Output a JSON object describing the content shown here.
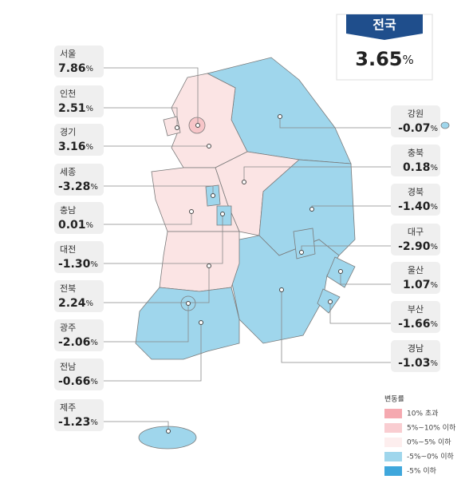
{
  "national": {
    "name": "전국",
    "value": "3.65"
  },
  "unit": "%",
  "regions": [
    {
      "name": "서울",
      "value": "7.86"
    },
    {
      "name": "인천",
      "value": "2.51"
    },
    {
      "name": "경기",
      "value": "3.16"
    },
    {
      "name": "세종",
      "value": "-3.28"
    },
    {
      "name": "충남",
      "value": "0.01"
    },
    {
      "name": "대전",
      "value": "-1.30"
    },
    {
      "name": "전북",
      "value": "2.24"
    },
    {
      "name": "광주",
      "value": "-2.06"
    },
    {
      "name": "전남",
      "value": "-0.66"
    },
    {
      "name": "제주",
      "value": "-1.23"
    },
    {
      "name": "강원",
      "value": "-0.07"
    },
    {
      "name": "충북",
      "value": "0.18"
    },
    {
      "name": "경북",
      "value": "-1.40"
    },
    {
      "name": "대구",
      "value": "-2.90"
    },
    {
      "name": "울산",
      "value": "1.07"
    },
    {
      "name": "부산",
      "value": "-1.66"
    },
    {
      "name": "경남",
      "value": "-1.03"
    }
  ],
  "legend": {
    "title": "변동률",
    "items": [
      "10% 초과",
      "5%~10% 이하",
      "0%~5% 이하",
      "-5%~0% 이하",
      "-5% 이하"
    ]
  }
}
